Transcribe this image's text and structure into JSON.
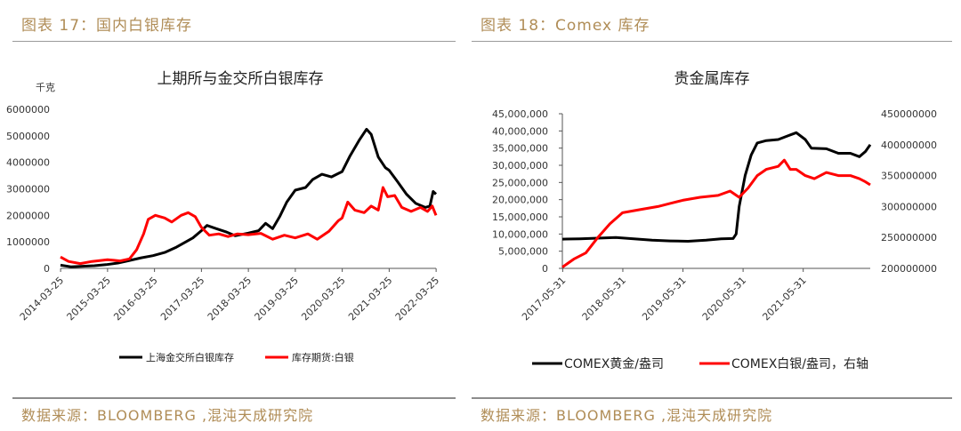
{
  "left": {
    "figure_label": "图表 17：国内白银库存",
    "source": "数据来源：BLOOMBERG ,混沌天成研究院"
  },
  "right": {
    "figure_label": "图表 18：Comex 库存",
    "source": "数据来源：BLOOMBERG ,混沌天成研究院"
  },
  "chart_data": [
    {
      "type": "line",
      "title": "上期所与金交所白银库存",
      "ylabel": "千克",
      "ylim": [
        0,
        6000000
      ],
      "yticks": [
        "0",
        "1000000",
        "2000000",
        "3000000",
        "4000000",
        "5000000",
        "6000000"
      ],
      "xticks": [
        "2014-03-25",
        "2015-03-25",
        "2016-03-25",
        "2017-03-25",
        "2018-03-25",
        "2019-03-25",
        "2020-03-25",
        "2021-03-25",
        "2022-03-25"
      ],
      "xlim": [
        2014.23,
        2022.23
      ],
      "legend_position": "bottom",
      "series": [
        {
          "name": "上海金交所白银库存",
          "color": "#000000",
          "points": [
            [
              2014.23,
              120000
            ],
            [
              2014.45,
              60000
            ],
            [
              2014.7,
              80000
            ],
            [
              2014.95,
              100000
            ],
            [
              2015.2,
              140000
            ],
            [
              2015.45,
              200000
            ],
            [
              2015.7,
              300000
            ],
            [
              2015.95,
              400000
            ],
            [
              2016.2,
              480000
            ],
            [
              2016.45,
              600000
            ],
            [
              2016.7,
              800000
            ],
            [
              2016.9,
              1000000
            ],
            [
              2017.05,
              1150000
            ],
            [
              2017.23,
              1420000
            ],
            [
              2017.35,
              1620000
            ],
            [
              2017.55,
              1500000
            ],
            [
              2017.75,
              1380000
            ],
            [
              2017.95,
              1230000
            ],
            [
              2018.23,
              1330000
            ],
            [
              2018.45,
              1420000
            ],
            [
              2018.6,
              1700000
            ],
            [
              2018.75,
              1500000
            ],
            [
              2018.9,
              1950000
            ],
            [
              2019.05,
              2500000
            ],
            [
              2019.23,
              2950000
            ],
            [
              2019.45,
              3050000
            ],
            [
              2019.6,
              3350000
            ],
            [
              2019.8,
              3550000
            ],
            [
              2020.0,
              3450000
            ],
            [
              2020.23,
              3650000
            ],
            [
              2020.4,
              4250000
            ],
            [
              2020.6,
              4850000
            ],
            [
              2020.75,
              5250000
            ],
            [
              2020.85,
              5050000
            ],
            [
              2021.0,
              4200000
            ],
            [
              2021.15,
              3800000
            ],
            [
              2021.23,
              3700000
            ],
            [
              2021.4,
              3300000
            ],
            [
              2021.6,
              2800000
            ],
            [
              2021.8,
              2450000
            ],
            [
              2022.0,
              2300000
            ],
            [
              2022.1,
              2350000
            ],
            [
              2022.17,
              2900000
            ],
            [
              2022.23,
              2800000
            ]
          ]
        },
        {
          "name": "库存期货:白银",
          "color": "#ff0000",
          "points": [
            [
              2014.23,
              430000
            ],
            [
              2014.4,
              260000
            ],
            [
              2014.65,
              180000
            ],
            [
              2014.9,
              260000
            ],
            [
              2015.23,
              330000
            ],
            [
              2015.5,
              280000
            ],
            [
              2015.7,
              360000
            ],
            [
              2015.85,
              700000
            ],
            [
              2016.0,
              1300000
            ],
            [
              2016.1,
              1850000
            ],
            [
              2016.25,
              2000000
            ],
            [
              2016.45,
              1900000
            ],
            [
              2016.6,
              1750000
            ],
            [
              2016.8,
              2000000
            ],
            [
              2016.95,
              2100000
            ],
            [
              2017.1,
              1950000
            ],
            [
              2017.23,
              1550000
            ],
            [
              2017.4,
              1250000
            ],
            [
              2017.6,
              1300000
            ],
            [
              2017.8,
              1200000
            ],
            [
              2018.0,
              1300000
            ],
            [
              2018.23,
              1270000
            ],
            [
              2018.5,
              1320000
            ],
            [
              2018.75,
              1100000
            ],
            [
              2019.0,
              1250000
            ],
            [
              2019.23,
              1150000
            ],
            [
              2019.5,
              1300000
            ],
            [
              2019.7,
              1100000
            ],
            [
              2019.95,
              1400000
            ],
            [
              2020.15,
              1800000
            ],
            [
              2020.23,
              1900000
            ],
            [
              2020.35,
              2500000
            ],
            [
              2020.5,
              2200000
            ],
            [
              2020.7,
              2100000
            ],
            [
              2020.85,
              2350000
            ],
            [
              2021.0,
              2200000
            ],
            [
              2021.1,
              3050000
            ],
            [
              2021.2,
              2700000
            ],
            [
              2021.35,
              2750000
            ],
            [
              2021.5,
              2300000
            ],
            [
              2021.7,
              2150000
            ],
            [
              2021.9,
              2300000
            ],
            [
              2022.05,
              2150000
            ],
            [
              2022.15,
              2350000
            ],
            [
              2022.23,
              2000000
            ]
          ]
        }
      ]
    },
    {
      "type": "line",
      "title": "贵金属库存",
      "ylim": [
        0,
        45000000
      ],
      "y2lim": [
        200000000,
        450000000
      ],
      "yticks": [
        "0",
        "5,000,000",
        "10,000,000",
        "15,000,000",
        "20,000,000",
        "25,000,000",
        "30,000,000",
        "35,000,000",
        "40,000,000",
        "45,000,000"
      ],
      "y2ticks": [
        "200000000",
        "250000000",
        "300000000",
        "350000000",
        "400000000",
        "450000000"
      ],
      "xticks": [
        "2017-05-31",
        "2018-05-31",
        "2019-05-31",
        "2020-05-31",
        "2021-05-31"
      ],
      "xlim": [
        2017.41,
        2022.53
      ],
      "legend_position": "bottom",
      "series": [
        {
          "name": "COMEX黄金/盎司",
          "color": "#000000",
          "axis": "left",
          "points": [
            [
              2017.41,
              8500000
            ],
            [
              2017.7,
              8600000
            ],
            [
              2018.0,
              8800000
            ],
            [
              2018.3,
              9000000
            ],
            [
              2018.6,
              8600000
            ],
            [
              2018.9,
              8200000
            ],
            [
              2019.2,
              8000000
            ],
            [
              2019.5,
              7900000
            ],
            [
              2019.8,
              8200000
            ],
            [
              2020.05,
              8600000
            ],
            [
              2020.25,
              8700000
            ],
            [
              2020.3,
              10000000
            ],
            [
              2020.35,
              18000000
            ],
            [
              2020.45,
              27000000
            ],
            [
              2020.55,
              33000000
            ],
            [
              2020.65,
              36500000
            ],
            [
              2020.8,
              37200000
            ],
            [
              2021.0,
              37500000
            ],
            [
              2021.15,
              38500000
            ],
            [
              2021.3,
              39500000
            ],
            [
              2021.45,
              37500000
            ],
            [
              2021.55,
              35000000
            ],
            [
              2021.8,
              34800000
            ],
            [
              2022.0,
              33500000
            ],
            [
              2022.2,
              33500000
            ],
            [
              2022.35,
              32500000
            ],
            [
              2022.45,
              34000000
            ],
            [
              2022.53,
              36000000
            ]
          ]
        },
        {
          "name": "COMEX白银/盎司，右轴",
          "color": "#ff0000",
          "axis": "right",
          "points": [
            [
              2017.41,
              202000000
            ],
            [
              2017.6,
              215000000
            ],
            [
              2017.8,
              225000000
            ],
            [
              2018.0,
              250000000
            ],
            [
              2018.2,
              272000000
            ],
            [
              2018.41,
              290000000
            ],
            [
              2018.7,
              295000000
            ],
            [
              2019.0,
              300000000
            ],
            [
              2019.2,
              305000000
            ],
            [
              2019.41,
              310000000
            ],
            [
              2019.7,
              315000000
            ],
            [
              2020.0,
              318000000
            ],
            [
              2020.2,
              325000000
            ],
            [
              2020.35,
              315000000
            ],
            [
              2020.5,
              330000000
            ],
            [
              2020.65,
              350000000
            ],
            [
              2020.8,
              360000000
            ],
            [
              2021.0,
              365000000
            ],
            [
              2021.1,
              375000000
            ],
            [
              2021.2,
              360000000
            ],
            [
              2021.3,
              360000000
            ],
            [
              2021.45,
              350000000
            ],
            [
              2021.6,
              345000000
            ],
            [
              2021.8,
              355000000
            ],
            [
              2022.0,
              350000000
            ],
            [
              2022.2,
              350000000
            ],
            [
              2022.35,
              345000000
            ],
            [
              2022.45,
              340000000
            ],
            [
              2022.53,
              335000000
            ]
          ]
        }
      ]
    }
  ]
}
